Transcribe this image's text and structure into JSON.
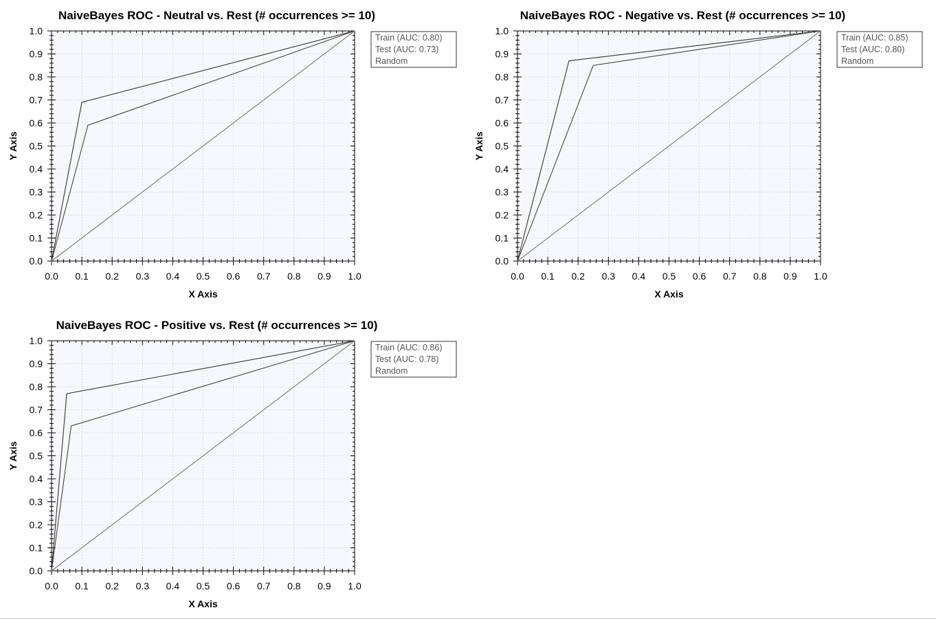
{
  "chart_data": [
    {
      "type": "line",
      "title": "NaiveBayes ROC - Neutral vs. Rest (# occurrences >= 10)",
      "xlabel": "X Axis",
      "ylabel": "Y Axis",
      "xlim": [
        0,
        1
      ],
      "ylim": [
        0,
        1
      ],
      "xticks": [
        "0.0",
        "0.1",
        "0.2",
        "0.3",
        "0.4",
        "0.5",
        "0.6",
        "0.7",
        "0.8",
        "0.9",
        "1.0"
      ],
      "yticks": [
        "0.0",
        "0.1",
        "0.2",
        "0.3",
        "0.4",
        "0.5",
        "0.6",
        "0.7",
        "0.8",
        "0.9",
        "1.0"
      ],
      "grid": true,
      "legend_position": "right",
      "series": [
        {
          "name": "Train (AUC: 0.80)",
          "x": [
            0,
            0.1,
            1
          ],
          "y": [
            0,
            0.69,
            1
          ],
          "color": "#333333"
        },
        {
          "name": "Test (AUC: 0.73)",
          "x": [
            0,
            0.12,
            1
          ],
          "y": [
            0,
            0.59,
            1
          ],
          "color": "#444444"
        },
        {
          "name": "Random",
          "x": [
            0,
            1
          ],
          "y": [
            0,
            1
          ],
          "color": "#777777"
        }
      ]
    },
    {
      "type": "line",
      "title": "NaiveBayes ROC - Negative vs. Rest (# occurrences >= 10)",
      "xlabel": "X Axis",
      "ylabel": "Y Axis",
      "xlim": [
        0,
        1
      ],
      "ylim": [
        0,
        1
      ],
      "xticks": [
        "0.0",
        "0.1",
        "0.2",
        "0.3",
        "0.4",
        "0.5",
        "0.6",
        "0.7",
        "0.8",
        "0.9",
        "1.0"
      ],
      "yticks": [
        "0.0",
        "0.1",
        "0.2",
        "0.3",
        "0.4",
        "0.5",
        "0.6",
        "0.7",
        "0.8",
        "0.9",
        "1.0"
      ],
      "grid": true,
      "legend_position": "right",
      "series": [
        {
          "name": "Train (AUC: 0.85)",
          "x": [
            0,
            0.17,
            1
          ],
          "y": [
            0,
            0.87,
            1
          ],
          "color": "#333333"
        },
        {
          "name": "Test (AUC: 0.80)",
          "x": [
            0,
            0.25,
            1
          ],
          "y": [
            0,
            0.85,
            1
          ],
          "color": "#444444"
        },
        {
          "name": "Random",
          "x": [
            0,
            1
          ],
          "y": [
            0,
            1
          ],
          "color": "#777777"
        }
      ]
    },
    {
      "type": "line",
      "title": "NaiveBayes ROC - Positive vs. Rest (# occurrences >= 10)",
      "xlabel": "X Axis",
      "ylabel": "Y Axis",
      "xlim": [
        0,
        1
      ],
      "ylim": [
        0,
        1
      ],
      "xticks": [
        "0.0",
        "0.1",
        "0.2",
        "0.3",
        "0.4",
        "0.5",
        "0.6",
        "0.7",
        "0.8",
        "0.9",
        "1.0"
      ],
      "yticks": [
        "0.0",
        "0.1",
        "0.2",
        "0.3",
        "0.4",
        "0.5",
        "0.6",
        "0.7",
        "0.8",
        "0.9",
        "1.0"
      ],
      "grid": true,
      "legend_position": "right",
      "series": [
        {
          "name": "Train (AUC: 0.86)",
          "x": [
            0,
            0.05,
            1
          ],
          "y": [
            0,
            0.77,
            1
          ],
          "color": "#333333"
        },
        {
          "name": "Test (AUC: 0.78)",
          "x": [
            0,
            0.065,
            1
          ],
          "y": [
            0,
            0.63,
            1
          ],
          "color": "#444444"
        },
        {
          "name": "Random",
          "x": [
            0,
            1
          ],
          "y": [
            0,
            1
          ],
          "color": "#777777"
        }
      ]
    }
  ],
  "style": {
    "plot_background": "#f7f8fc",
    "axis_color": "#000000",
    "grid_color": "#c8c8c8",
    "legend_text_color": "#555555"
  }
}
